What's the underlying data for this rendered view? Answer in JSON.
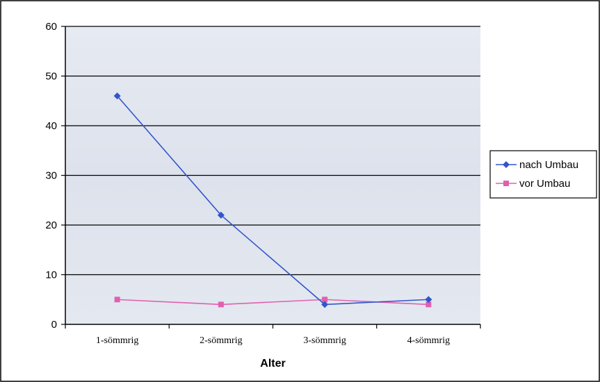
{
  "chart_data": {
    "type": "line",
    "categories": [
      "1-sömmrig",
      "2-sömmrig",
      "3-sömmrig",
      "4-sömmrig"
    ],
    "series": [
      {
        "name": "nach Umbau",
        "values": [
          46,
          22,
          4,
          5
        ],
        "color": "#3355cc",
        "marker": "diamond"
      },
      {
        "name": "vor Umbau",
        "values": [
          5,
          4,
          5,
          4
        ],
        "color": "#e060b0",
        "marker": "square"
      }
    ],
    "title": "",
    "xlabel": "Alter",
    "ylabel": "",
    "ylim": [
      0,
      60
    ],
    "yticks": [
      "0",
      "10",
      "20",
      "30",
      "40",
      "50",
      "60"
    ],
    "grid": true,
    "legend": "right",
    "plot_background": "#dde3ee"
  }
}
